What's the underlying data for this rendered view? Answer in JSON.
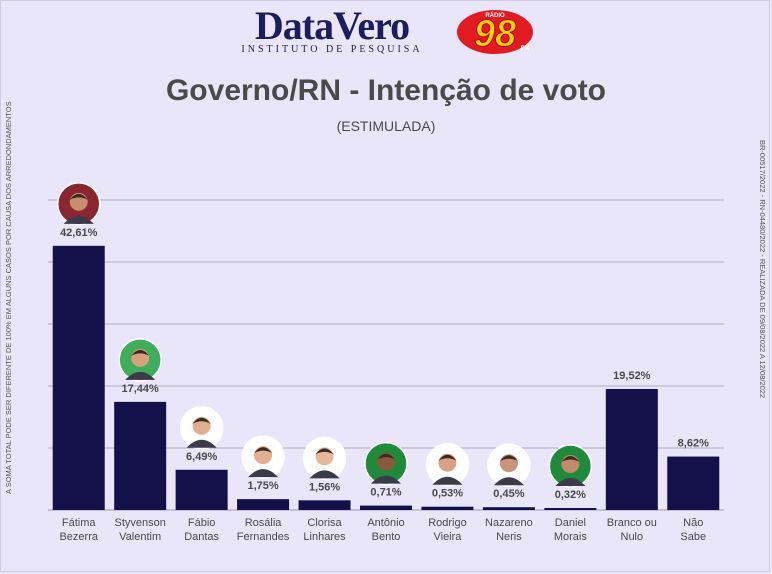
{
  "header": {
    "brand": "DataVero",
    "brand_sub": "INSTITUTO DE PESQUISA",
    "radio_top": "RÁDIO",
    "radio_num": "98",
    "radio_fm": "FM"
  },
  "side_left_text": "A SOMA TOTAL PODE SER DIFERENTE DE 100% EM ALGUNS CASOS POR CAUSA DOS ARREDONDAMENTOS",
  "side_right_text": "BR-00517/2022 - RN-04480/2022 - REALIZADA DE 09/08/2022 A 12/08/2022",
  "colors": {
    "bar": "#13104a",
    "background": "#e9e6fa",
    "gridline": "#9a98b2"
  },
  "chart_data": {
    "type": "bar",
    "title": "Governo/RN - Intenção de voto",
    "subtitle": "(ESTIMULADA)",
    "categories": [
      [
        "Fátima",
        "Bezerra"
      ],
      [
        "Styvenson",
        "Valentim"
      ],
      [
        "Fábio",
        "Dantas"
      ],
      [
        "Rosália",
        "Fernandes"
      ],
      [
        "Clorisa",
        "Linhares"
      ],
      [
        "Antônio",
        "Bento"
      ],
      [
        "Rodrigo",
        "Vieira"
      ],
      [
        "Nazareno",
        "Neris"
      ],
      [
        "Daniel",
        "Morais"
      ],
      [
        "Branco ou",
        "Nulo"
      ],
      [
        "Não",
        "Sabe"
      ]
    ],
    "values": [
      42.61,
      17.44,
      6.49,
      1.75,
      1.56,
      0.71,
      0.53,
      0.45,
      0.32,
      19.52,
      8.62
    ],
    "value_labels": [
      "42,61%",
      "17,44%",
      "6,49%",
      "1,75%",
      "1,56%",
      "0,71%",
      "0,53%",
      "0,45%",
      "0,32%",
      "19,52%",
      "8,62%"
    ],
    "has_photo": [
      true,
      true,
      true,
      true,
      true,
      true,
      true,
      true,
      true,
      false,
      false
    ],
    "ylim": [
      0,
      50
    ],
    "grid": true,
    "xlabel": "",
    "ylabel": ""
  }
}
